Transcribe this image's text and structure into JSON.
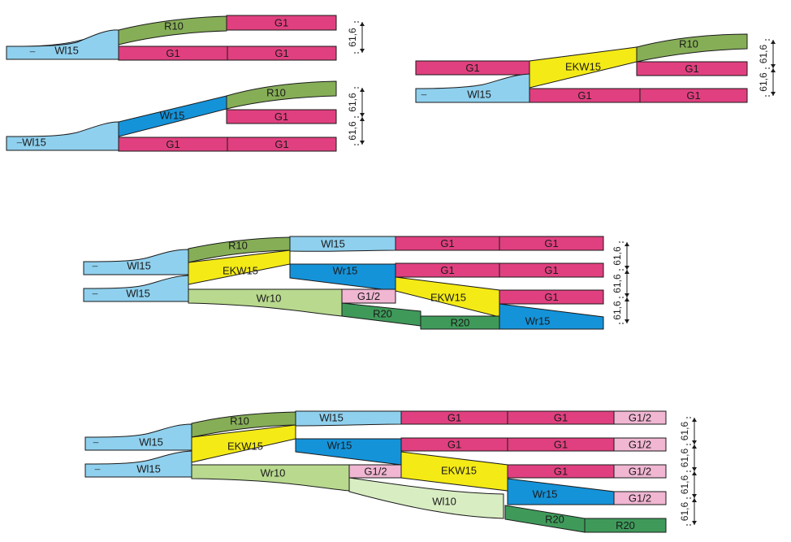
{
  "colors": {
    "G": "#e0407f",
    "G_half": "#f0b6d2",
    "R10": "#86ae57",
    "R20": "#3f9a5a",
    "Wl": "#8fd0ee",
    "Wr15": "#1593d9",
    "Wr10": "#b8d98e",
    "Wl10": "#d9edc3",
    "EKW": "#f4ea16",
    "outline": "#1a1a1a"
  },
  "labels": {
    "G1": "G1",
    "G1_2": "G1/2",
    "R10": "R10",
    "R20": "R20",
    "Wl15": "Wl15",
    "Wr15": "Wr15",
    "Wr10": "Wr10",
    "Wl10": "Wl10",
    "EKW15": "EKW15",
    "dash": "–",
    "dim": "61,6"
  }
}
